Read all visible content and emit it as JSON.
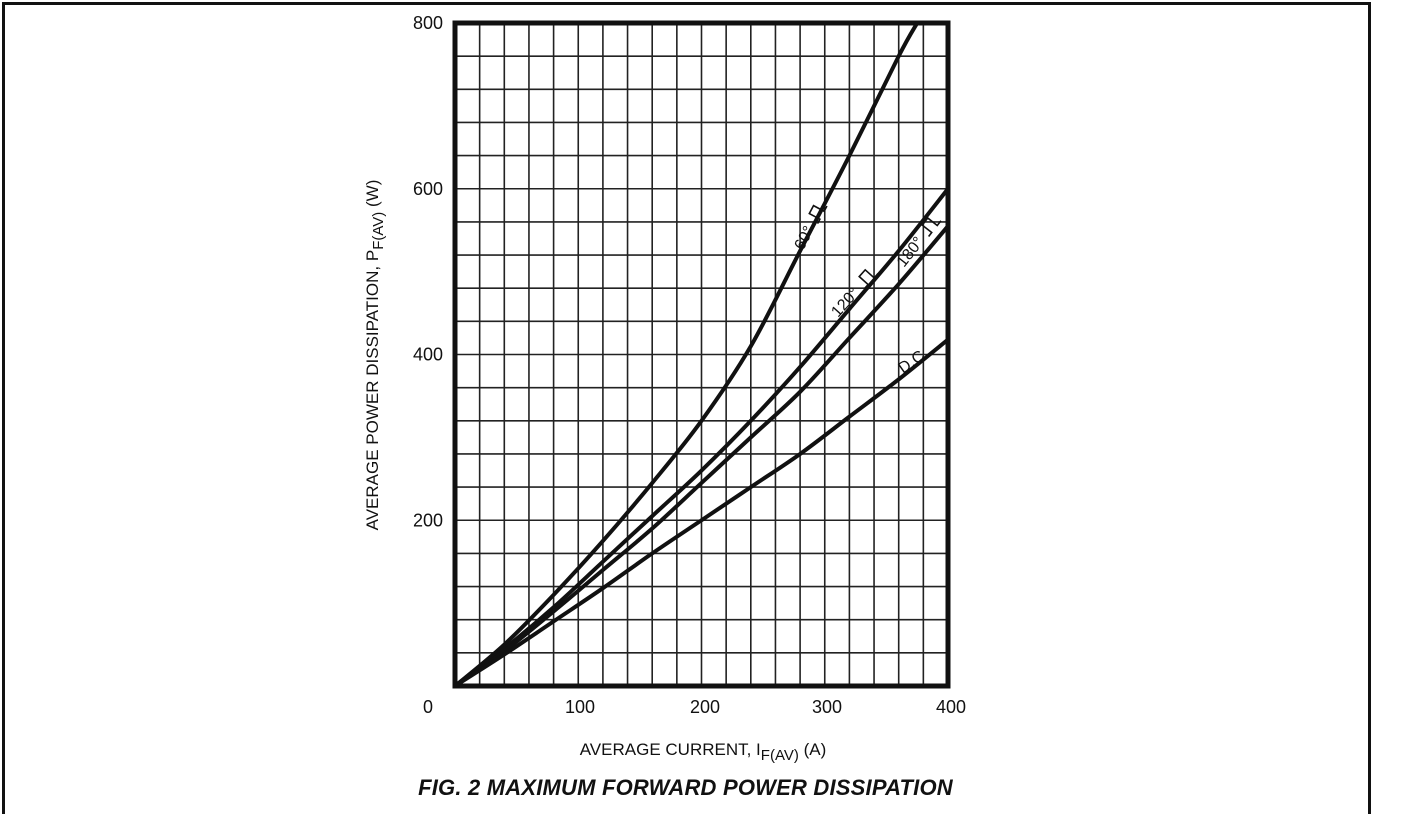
{
  "figure": {
    "caption": "FIG. 2 MAXIMUM FORWARD POWER DISSIPATION"
  },
  "chart_data": {
    "type": "line",
    "title": "FIG. 2 MAXIMUM FORWARD POWER DISSIPATION",
    "xlabel": {
      "main": "AVERAGE CURRENT, I",
      "sub": "F(AV)",
      "unit": " (A)"
    },
    "ylabel": {
      "main": "AVERAGE POWER DISSIPATION, P",
      "sub": "F(AV)",
      "unit": " (W)"
    },
    "xlim": [
      0,
      400
    ],
    "ylim": [
      0,
      800
    ],
    "x_ticks": [
      "0",
      "100",
      "200",
      "300",
      "400"
    ],
    "y_ticks": [
      "200",
      "400",
      "600",
      "800"
    ],
    "grid": true,
    "grid_minor_x": 20,
    "grid_minor_y": 40,
    "series": [
      {
        "name": "60°",
        "x": [
          0,
          40,
          80,
          120,
          160,
          200,
          240,
          280,
          320,
          360,
          375
        ],
        "y": [
          0,
          50,
          110,
          175,
          245,
          320,
          410,
          525,
          640,
          760,
          800
        ]
      },
      {
        "name": "120°",
        "x": [
          0,
          40,
          80,
          120,
          160,
          200,
          240,
          280,
          320,
          360,
          400
        ],
        "y": [
          0,
          45,
          95,
          150,
          205,
          260,
          320,
          385,
          455,
          525,
          600
        ]
      },
      {
        "name": "180°",
        "x": [
          0,
          40,
          80,
          120,
          160,
          200,
          240,
          280,
          320,
          360,
          400
        ],
        "y": [
          0,
          42,
          90,
          140,
          190,
          245,
          300,
          355,
          420,
          485,
          555
        ]
      },
      {
        "name": "D.C.",
        "x": [
          0,
          40,
          80,
          120,
          160,
          200,
          240,
          280,
          320,
          360,
          400
        ],
        "y": [
          0,
          38,
          78,
          118,
          160,
          200,
          240,
          280,
          325,
          370,
          418
        ]
      }
    ],
    "annotations": [
      "60°",
      "120°",
      "180°",
      "D.C."
    ]
  }
}
